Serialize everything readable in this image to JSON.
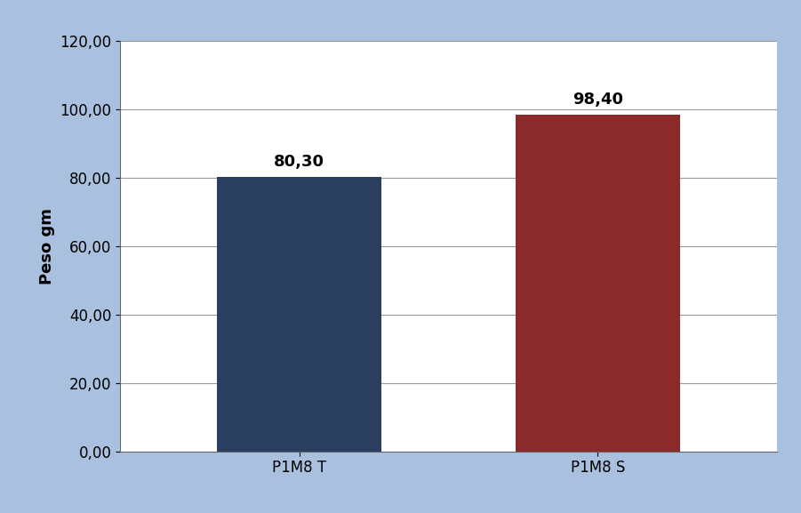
{
  "chart_data": {
    "type": "bar",
    "y_label": "Peso gm",
    "categories": [
      "P1M8 T",
      "P1M8 S"
    ],
    "values": [
      80.3,
      98.4
    ],
    "value_labels": [
      "80,30",
      "98,40"
    ],
    "colors": [
      "#2a3f5f",
      "#8b2a2a"
    ],
    "ylim": [
      0,
      120
    ],
    "yticks": [
      {
        "value": 0,
        "label": "0,00"
      },
      {
        "value": 20,
        "label": "20,00"
      },
      {
        "value": 40,
        "label": "40,00"
      },
      {
        "value": 60,
        "label": "60,00"
      },
      {
        "value": 80,
        "label": "80,00"
      },
      {
        "value": 100,
        "label": "100,00"
      },
      {
        "value": 120,
        "label": "120,00"
      }
    ],
    "grid": true,
    "data_labels": true
  }
}
